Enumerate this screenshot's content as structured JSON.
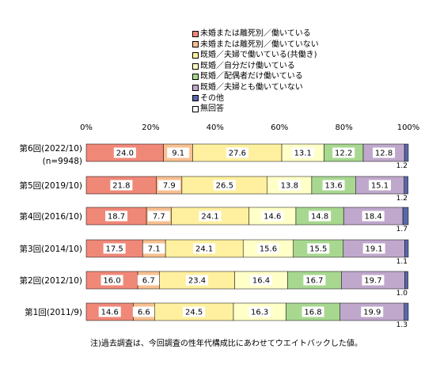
{
  "chart_data": {
    "type": "bar",
    "orientation": "horizontal",
    "stacked": true,
    "categories": [
      "第6回(2022/10)\n(n=9948)",
      "第5回(2019/10)",
      "第4回(2016/10)",
      "第3回(2014/10)",
      "第2回(2012/10)",
      "第1回(2011/9)"
    ],
    "series": [
      {
        "name": "未婚または離死別／働いている",
        "color": "#f08878",
        "values": [
          24.0,
          21.8,
          18.7,
          17.5,
          16.0,
          14.6
        ]
      },
      {
        "name": "未婚または離死別／働いていない",
        "color": "#f8c090",
        "values": [
          9.1,
          7.9,
          7.7,
          7.1,
          6.7,
          6.6
        ]
      },
      {
        "name": "既婚／夫婦で働いている(共働き)",
        "color": "#fff0a0",
        "values": [
          27.6,
          26.5,
          24.1,
          24.1,
          23.4,
          24.5
        ]
      },
      {
        "name": "既婚／自分だけ働いている",
        "color": "#ffffc8",
        "values": [
          13.1,
          13.8,
          14.6,
          15.6,
          16.4,
          16.3
        ]
      },
      {
        "name": "既婚／配偶者だけ働いている",
        "color": "#a8d890",
        "values": [
          12.2,
          13.6,
          14.8,
          15.5,
          16.7,
          16.8
        ]
      },
      {
        "name": "既婚／夫婦とも働いていない",
        "color": "#c0a8cc",
        "values": [
          12.8,
          15.1,
          18.4,
          19.1,
          19.7,
          19.9
        ]
      },
      {
        "name": "その他",
        "color": "#5868a8",
        "values": [
          1.2,
          1.2,
          1.7,
          1.1,
          1.0,
          1.3
        ]
      },
      {
        "name": "無回答",
        "color": "#ffffff",
        "values": [
          0.0,
          0.0,
          0.0,
          0.0,
          0.0,
          0.0
        ]
      }
    ],
    "xlim": [
      0,
      100
    ],
    "xticks": [
      "0%",
      "20%",
      "40%",
      "60%",
      "80%",
      "100%"
    ],
    "legend_position": "top-right",
    "note": "注)過去調査は、今回調査の性年代構成比にあわせてウエイトバックした値。"
  }
}
